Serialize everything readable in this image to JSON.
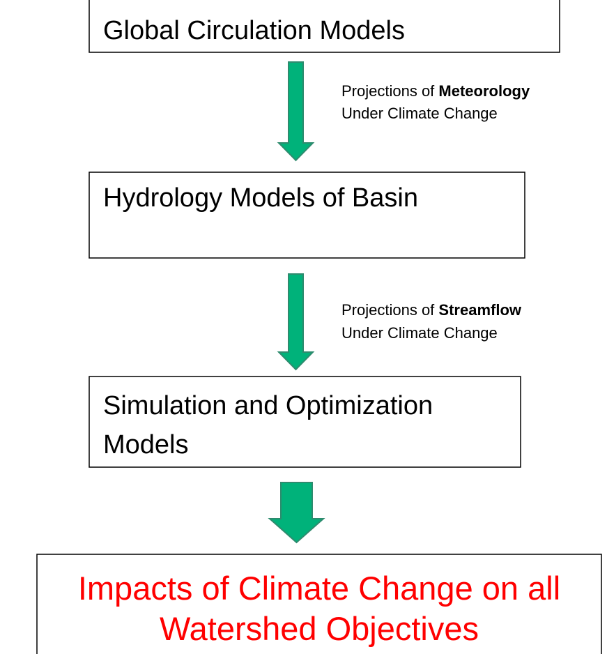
{
  "nodes": [
    {
      "lines": [
        "Global Circulation Models"
      ]
    },
    {
      "lines": [
        "Hydrology Models of Basin"
      ]
    },
    {
      "lines": [
        "Simulation and Optimization",
        "Models"
      ]
    },
    {
      "lines": [
        "Impacts of Climate Change on all",
        "Watershed Objectives"
      ]
    }
  ],
  "edges": [
    {
      "prefix": "Projections of",
      "emphasis": "Meteorology",
      "line2": "Under Climate Change"
    },
    {
      "prefix": "Projections of",
      "emphasis": "Streamflow",
      "line2": "Under Climate Change"
    }
  ]
}
